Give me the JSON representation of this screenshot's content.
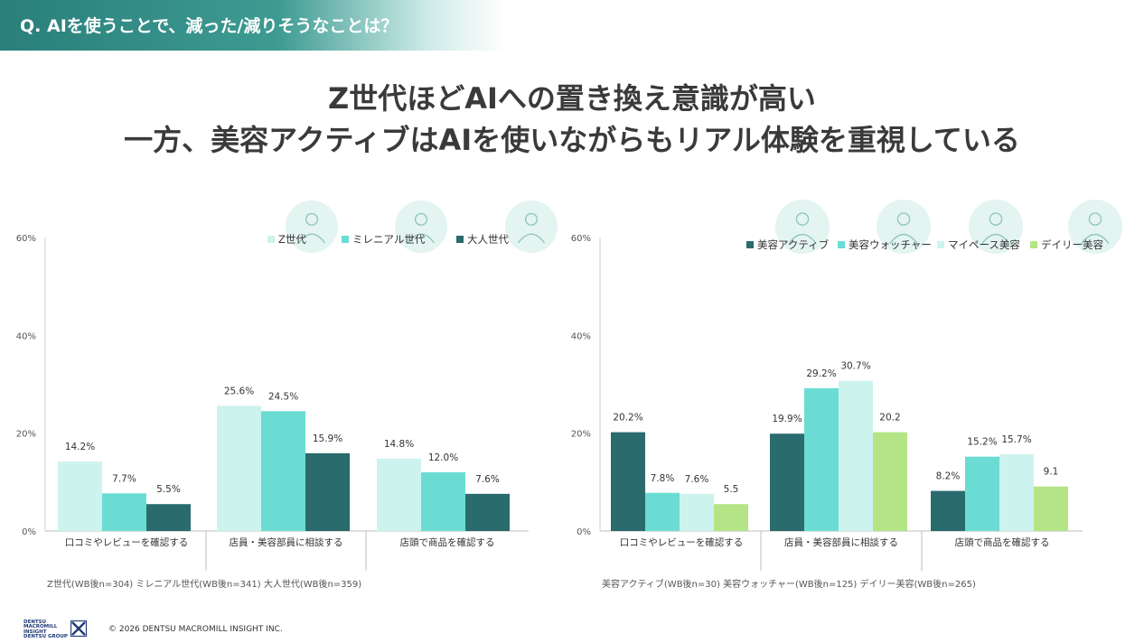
{
  "question": "Q. AIを使うことで、減った/減りそうなことは？",
  "headline": {
    "line1": "Z世代ほどAIへの置き換え意識が高い",
    "line2": "一方、美容アクティブはAIを使いながらもリアル体験を重視している"
  },
  "chart_data": [
    {
      "type": "bar",
      "categories": [
        "口コミやレビューを確認する",
        "店員・美容部員に相談する",
        "店頭で商品を確認する"
      ],
      "series": [
        {
          "name": "Z世代",
          "color": "#cdf3ef",
          "values": [
            14.2,
            25.6,
            14.8
          ],
          "labels": [
            "14.2%",
            "25.6%",
            "14.8%"
          ]
        },
        {
          "name": "ミレニアル世代",
          "color": "#6bdcd4",
          "values": [
            7.7,
            24.5,
            12.0
          ],
          "labels": [
            "7.7%",
            "24.5%",
            "12.0%"
          ]
        },
        {
          "name": "大人世代",
          "color": "#2a6b6e",
          "values": [
            5.5,
            15.9,
            7.6
          ],
          "labels": [
            "5.5%",
            "15.9%",
            "7.6%"
          ]
        }
      ],
      "yticks": [
        "60%",
        "40%",
        "20%",
        "0%"
      ],
      "ylim": [
        0,
        60
      ],
      "legend": "top-right",
      "icons": [
        "woman-thinking-icon",
        "woman-laptop-icon",
        "woman-phone-icon"
      ],
      "note": "Z世代(WB後n=304) ミレニアル世代(WB後n=341) 大人世代(WB後n=359)"
    },
    {
      "type": "bar",
      "categories": [
        "口コミやレビューを確認する",
        "店員・美容部員に相談する",
        "店頭で商品を確認する"
      ],
      "series": [
        {
          "name": "美容アクティブ",
          "color": "#2a6b6e",
          "values": [
            20.2,
            19.9,
            8.2
          ],
          "labels": [
            "20.2%",
            "19.9%",
            "8.2%"
          ]
        },
        {
          "name": "美容ウォッチャー",
          "color": "#6bdcd4",
          "values": [
            7.8,
            29.2,
            15.2
          ],
          "labels": [
            "7.8%",
            "29.2%",
            "15.2%"
          ]
        },
        {
          "name": "マイペース美容",
          "color": "#cdf3ef",
          "values": [
            7.6,
            30.7,
            15.7
          ],
          "labels": [
            "7.6%",
            "30.7%",
            "15.7%"
          ]
        },
        {
          "name": "デイリー美容",
          "color": "#b4e486",
          "values": [
            5.5,
            20.2,
            9.1
          ],
          "labels": [
            "5.5",
            "20.2",
            "9.1"
          ]
        }
      ],
      "yticks": [
        "60%",
        "40%",
        "20%",
        "0%"
      ],
      "ylim": [
        0,
        60
      ],
      "legend": "top-right",
      "icons": [
        "beauty-consultation-icon",
        "makeup-woman-icon",
        "woman-portrait-icon",
        "skincare-woman-icon"
      ],
      "note": "美容アクティブ(WB後n=30) 美容ウォッチャー(WB後n=125) デイリー美容(WB後n=265)"
    }
  ],
  "footer": {
    "logo_text": "DENTSU\nMACROMILL\nINSIGHT\nDENTSU GROUP",
    "copyright": "© 2026  DENTSU MACROMILL INSIGHT INC."
  }
}
